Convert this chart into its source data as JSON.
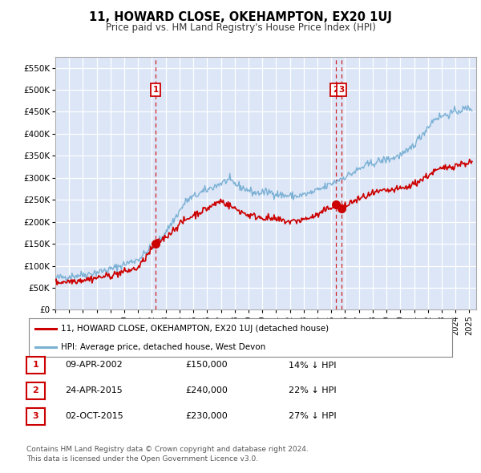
{
  "title": "11, HOWARD CLOSE, OKEHAMPTON, EX20 1UJ",
  "subtitle": "Price paid vs. HM Land Registry's House Price Index (HPI)",
  "ylim": [
    0,
    575000
  ],
  "xlim_start": 1995.0,
  "xlim_end": 2025.5,
  "yticks": [
    0,
    50000,
    100000,
    150000,
    200000,
    250000,
    300000,
    350000,
    400000,
    450000,
    500000,
    550000
  ],
  "ytick_labels": [
    "£0",
    "£50K",
    "£100K",
    "£150K",
    "£200K",
    "£250K",
    "£300K",
    "£350K",
    "£400K",
    "£450K",
    "£500K",
    "£550K"
  ],
  "plot_bg_color": "#dce6f7",
  "grid_color": "#ffffff",
  "hpi_color": "#7ab0d4",
  "price_color": "#cc0000",
  "sale_label_color": "#cc0000",
  "transactions": [
    {
      "date_num": 2002.27,
      "price": 150000,
      "label": "1"
    },
    {
      "date_num": 2015.31,
      "price": 240000,
      "label": "2"
    },
    {
      "date_num": 2015.75,
      "price": 230000,
      "label": "3"
    }
  ],
  "legend_entries": [
    "11, HOWARD CLOSE, OKEHAMPTON, EX20 1UJ (detached house)",
    "HPI: Average price, detached house, West Devon"
  ],
  "table_rows": [
    {
      "num": "1",
      "date": "09-APR-2002",
      "price": "£150,000",
      "hpi": "14% ↓ HPI"
    },
    {
      "num": "2",
      "date": "24-APR-2015",
      "price": "£240,000",
      "hpi": "22% ↓ HPI"
    },
    {
      "num": "3",
      "date": "02-OCT-2015",
      "price": "£230,000",
      "hpi": "27% ↓ HPI"
    }
  ],
  "footer": "Contains HM Land Registry data © Crown copyright and database right 2024.\nThis data is licensed under the Open Government Licence v3.0."
}
